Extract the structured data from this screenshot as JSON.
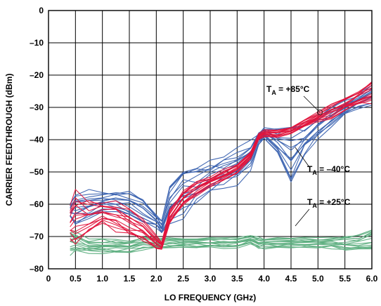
{
  "chart_data": {
    "type": "line",
    "xlabel": "LO FREQUENCY (GHz)",
    "ylabel": "CARRIER FEEDTHROUGH (dBm)",
    "xlim": [
      0,
      6.0
    ],
    "ylim": [
      -80,
      0
    ],
    "x_ticks": [
      "0",
      "0.5",
      "1.0",
      "1.5",
      "2.0",
      "2.5",
      "3.0",
      "3.5",
      "4.0",
      "4.5",
      "5.0",
      "5.5",
      "6.0"
    ],
    "y_ticks": [
      "0",
      "–10",
      "–20",
      "–30",
      "–40",
      "–50",
      "–60",
      "–70",
      "–80"
    ],
    "grid": true,
    "colors": {
      "hot": "#e0143c",
      "cold": "#3a62b0",
      "room": "#5cae7e"
    },
    "annotations": [
      {
        "base": "T",
        "sub": "A",
        "rest": " = +85°C"
      },
      {
        "base": "T",
        "sub": "A",
        "rest": " = –40°C"
      },
      {
        "base": "T",
        "sub": "A",
        "rest": " = +25°C"
      }
    ],
    "x": [
      0.4,
      0.5,
      0.75,
      1.0,
      1.25,
      1.5,
      1.75,
      2.0,
      2.1,
      2.25,
      2.5,
      2.75,
      3.0,
      3.25,
      3.5,
      3.75,
      3.9,
      4.0,
      4.25,
      4.5,
      4.75,
      5.0,
      5.25,
      5.5,
      5.75,
      6.0
    ],
    "series": [
      {
        "label_index": 0,
        "color": "hot",
        "spread": [
          -5,
          -8,
          -5,
          -3,
          -4,
          -4,
          -3,
          -2,
          -1,
          -2,
          -2,
          -2,
          -1.5,
          -1.5,
          -1.5,
          -1,
          -1,
          -1,
          -1,
          -1,
          -1,
          -1.5,
          -2,
          -2,
          -2,
          -3
        ],
        "values": [
          -66,
          -65,
          -64,
          -63,
          -64,
          -66,
          -68,
          -72,
          -73,
          -64,
          -58,
          -55,
          -53,
          -51,
          -49,
          -45,
          -39,
          -38,
          -38,
          -37,
          -35,
          -33,
          -31,
          -29,
          -27,
          -25
        ]
      },
      {
        "label_index": 1,
        "color": "cold",
        "spread": [
          -2,
          -5,
          -4,
          -3,
          -3,
          -4,
          -4,
          -2,
          -2,
          -5,
          -7,
          -6,
          -5,
          -4,
          -5,
          -4,
          -2,
          -2,
          -4,
          -8,
          -4,
          -3,
          -3,
          -2,
          -2,
          -3
        ],
        "values": [
          -62,
          -61,
          -60,
          -59,
          -59,
          -60,
          -62,
          -65,
          -67,
          -60,
          -56,
          -54,
          -52,
          -50,
          -48,
          -45,
          -40,
          -38,
          -41,
          -44,
          -40,
          -36,
          -33,
          -30,
          -28,
          -26
        ]
      },
      {
        "label_index": 2,
        "color": "room",
        "spread": [
          -3,
          -3,
          -2,
          -2,
          -2,
          -2,
          -2,
          -1.5,
          -1.5,
          -1.5,
          -1.5,
          -1.5,
          -1.5,
          -1.5,
          -1.5,
          -1.5,
          -1.5,
          -1.5,
          -1.5,
          -1.5,
          -1.5,
          -1.5,
          -1.5,
          -2,
          -2,
          -3
        ],
        "values": [
          -72,
          -72,
          -73,
          -73,
          -73,
          -73,
          -72,
          -72,
          -72,
          -72,
          -72,
          -72,
          -72,
          -72,
          -72,
          -71,
          -72,
          -72,
          -72,
          -72,
          -72,
          -72,
          -72,
          -72,
          -72,
          -71
        ]
      }
    ]
  }
}
